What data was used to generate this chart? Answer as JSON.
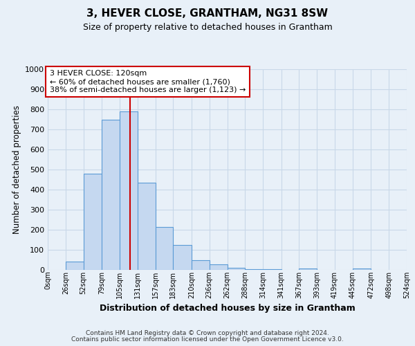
{
  "title": "3, HEVER CLOSE, GRANTHAM, NG31 8SW",
  "subtitle": "Size of property relative to detached houses in Grantham",
  "xlabel": "Distribution of detached houses by size in Grantham",
  "ylabel": "Number of detached properties",
  "bin_edges": [
    0,
    26,
    52,
    79,
    105,
    131,
    157,
    183,
    210,
    236,
    262,
    288,
    314,
    341,
    367,
    393,
    419,
    445,
    472,
    498,
    524
  ],
  "bar_values": [
    0,
    42,
    480,
    750,
    790,
    435,
    215,
    125,
    50,
    28,
    12,
    3,
    2,
    0,
    8,
    0,
    0,
    8,
    0,
    0
  ],
  "bar_color": "#c5d8f0",
  "bar_edge_color": "#5b9bd5",
  "vline_x": 120,
  "vline_color": "#cc0000",
  "ylim": [
    0,
    1000
  ],
  "yticks": [
    0,
    100,
    200,
    300,
    400,
    500,
    600,
    700,
    800,
    900,
    1000
  ],
  "tick_labels": [
    "0sqm",
    "26sqm",
    "52sqm",
    "79sqm",
    "105sqm",
    "131sqm",
    "157sqm",
    "183sqm",
    "210sqm",
    "236sqm",
    "262sqm",
    "288sqm",
    "314sqm",
    "341sqm",
    "367sqm",
    "393sqm",
    "419sqm",
    "445sqm",
    "472sqm",
    "498sqm",
    "524sqm"
  ],
  "annotation_title": "3 HEVER CLOSE: 120sqm",
  "annotation_line1": "← 60% of detached houses are smaller (1,760)",
  "annotation_line2": "38% of semi-detached houses are larger (1,123) →",
  "annotation_box_color": "#ffffff",
  "annotation_border_color": "#cc0000",
  "grid_color": "#c8d8e8",
  "bg_color": "#e8f0f8",
  "footer1": "Contains HM Land Registry data © Crown copyright and database right 2024.",
  "footer2": "Contains public sector information licensed under the Open Government Licence v3.0."
}
